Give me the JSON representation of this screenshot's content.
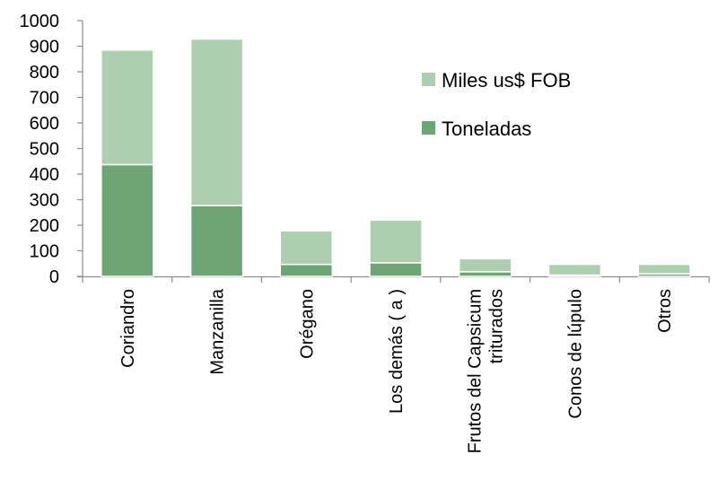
{
  "chart_data": {
    "type": "bar",
    "stacked": true,
    "categories": [
      [
        "Coriandro"
      ],
      [
        "Manzanilla"
      ],
      [
        "Orégano"
      ],
      [
        "Los demás ( a )"
      ],
      [
        "Frutos del Capsicum",
        "triturados"
      ],
      [
        "Conos de lúpulo"
      ],
      [
        "Otros"
      ]
    ],
    "series": [
      {
        "name": "Toneladas",
        "color": "#6fa574",
        "values": [
          437,
          277,
          47,
          53,
          18,
          5,
          10
        ]
      },
      {
        "name": "Miles us$ FOB",
        "color": "#adcfaf",
        "values": [
          448,
          651,
          131,
          167,
          51,
          42,
          37
        ]
      }
    ],
    "ylim": [
      0,
      1000
    ],
    "yticks": [
      0,
      100,
      200,
      300,
      400,
      500,
      600,
      700,
      800,
      900,
      1000
    ],
    "title": "",
    "xlabel": "",
    "ylabel": "",
    "grid": false,
    "legend_position": "top-right",
    "legend_order": [
      1,
      0
    ]
  }
}
